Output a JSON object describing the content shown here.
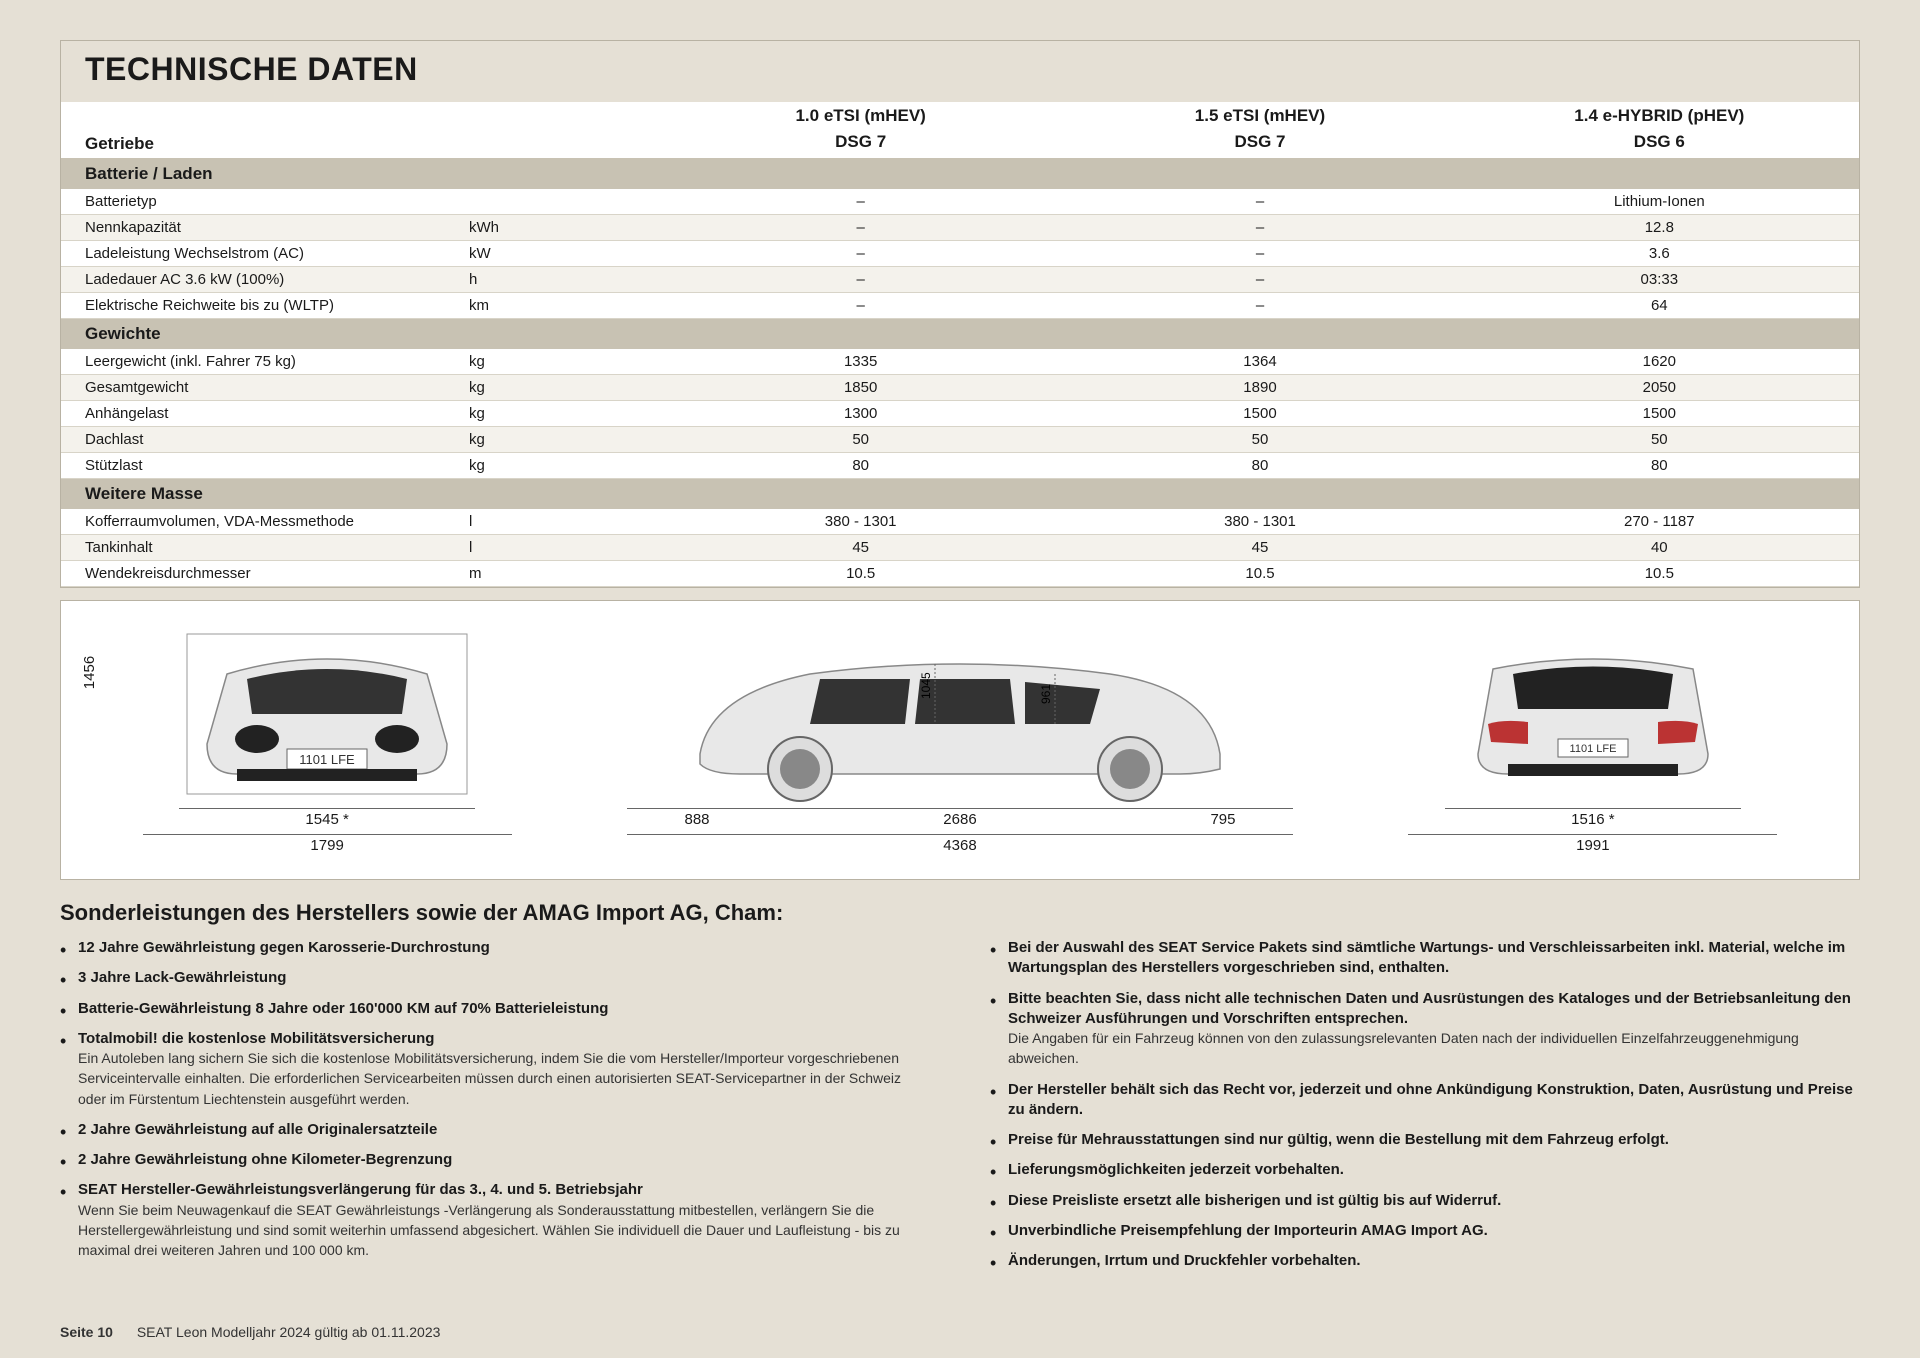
{
  "title": "TECHNISCHE DATEN",
  "header": {
    "row_label": "Getriebe",
    "variants": [
      {
        "engine": "1.0 eTSI (mHEV)",
        "trans": "DSG 7"
      },
      {
        "engine": "1.5 eTSI (mHEV)",
        "trans": "DSG 7"
      },
      {
        "engine": "1.4 e-HYBRID (pHEV)",
        "trans": "DSG 6"
      }
    ]
  },
  "sections": [
    {
      "name": "Batterie / Laden",
      "rows": [
        {
          "label": "Batterietyp",
          "unit": "",
          "v": [
            "–",
            "–",
            "Lithium-Ionen"
          ]
        },
        {
          "label": "Nennkapazität",
          "unit": "kWh",
          "v": [
            "–",
            "–",
            "12.8"
          ]
        },
        {
          "label": "Ladeleistung Wechselstrom (AC)",
          "unit": "kW",
          "v": [
            "–",
            "–",
            "3.6"
          ]
        },
        {
          "label": "Ladedauer AC 3.6 kW (100%)",
          "unit": "h",
          "v": [
            "–",
            "–",
            "03:33"
          ]
        },
        {
          "label": "Elektrische Reichweite bis zu (WLTP)",
          "unit": "km",
          "v": [
            "–",
            "–",
            "64"
          ]
        }
      ]
    },
    {
      "name": "Gewichte",
      "rows": [
        {
          "label": "Leergewicht (inkl. Fahrer 75 kg)",
          "unit": "kg",
          "v": [
            "1335",
            "1364",
            "1620"
          ]
        },
        {
          "label": "Gesamtgewicht",
          "unit": "kg",
          "v": [
            "1850",
            "1890",
            "2050"
          ]
        },
        {
          "label": "Anhängelast",
          "unit": "kg",
          "v": [
            "1300",
            "1500",
            "1500"
          ]
        },
        {
          "label": "Dachlast",
          "unit": "kg",
          "v": [
            "50",
            "50",
            "50"
          ]
        },
        {
          "label": "Stützlast",
          "unit": "kg",
          "v": [
            "80",
            "80",
            "80"
          ]
        }
      ]
    },
    {
      "name": "Weitere Masse",
      "rows": [
        {
          "label": "Kofferraumvolumen, VDA-Messmethode",
          "unit": "l",
          "v": [
            "380 - 1301",
            "380 - 1301",
            "270 - 1187"
          ]
        },
        {
          "label": "Tankinhalt",
          "unit": "l",
          "v": [
            "45",
            "45",
            "40"
          ]
        },
        {
          "label": "Wendekreisdurchmesser",
          "unit": "m",
          "v": [
            "10.5",
            "10.5",
            "10.5"
          ]
        }
      ]
    }
  ],
  "dimensions": {
    "front": {
      "height": "1456",
      "track": "1545 *",
      "width": "1799",
      "plate": "1101 LFE"
    },
    "side": {
      "headroom": "1045",
      "rear_head": "961",
      "front_over": "888",
      "wheelbase": "2686",
      "rear_over": "795",
      "length": "4368"
    },
    "rear": {
      "track": "1516 *",
      "width": "1991",
      "plate": "1101 LFE"
    }
  },
  "bottom": {
    "heading": "Sonderleistungen des Herstellers sowie der AMAG Import AG, Cham:",
    "left": [
      {
        "bold": "12 Jahre Gewährleistung gegen Karosserie-Durchrostung"
      },
      {
        "bold": "3 Jahre Lack-Gewährleistung"
      },
      {
        "bold": "Batterie-Gewährleistung 8 Jahre oder 160'000 KM auf 70% Batterieleistung"
      },
      {
        "bold": "Totalmobil! die kostenlose Mobilitätsversicherung",
        "sub": "Ein Autoleben lang sichern Sie sich die kostenlose Mobilitätsversicherung, indem Sie die vom Hersteller/Importeur vorgeschriebenen Serviceintervalle einhalten. Die erforderlichen Servicearbeiten müssen durch einen autorisierten SEAT-Servicepartner in der Schweiz oder im Fürstentum Liechtenstein ausgeführt werden."
      },
      {
        "bold": "2 Jahre Gewährleistung auf alle Originalersatzteile"
      },
      {
        "bold": "2 Jahre Gewährleistung ohne Kilometer-Begrenzung"
      },
      {
        "bold": "SEAT Hersteller-Gewährleistungsverlängerung für das 3., 4. und 5. Betriebsjahr",
        "sub": "Wenn Sie beim Neuwagenkauf die SEAT Gewährleistungs -Verlängerung als Sonderausstattung mitbestellen, verlängern Sie die Herstellergewährleistung und sind somit weiterhin umfassend abgesichert. Wählen Sie individuell die Dauer und Laufleistung - bis zu maximal drei weiteren Jahren und 100 000 km."
      }
    ],
    "right": [
      {
        "bold": "Bei der Auswahl des SEAT Service Pakets sind sämtliche Wartungs- und Verschleissarbeiten inkl. Material, welche im Wartungsplan des Herstellers vorgeschrieben sind, enthalten."
      },
      {
        "bold": "Bitte beachten Sie, dass nicht alle technischen Daten und Ausrüstungen des Kataloges und der Betriebsanleitung den Schweizer Ausführungen und Vorschriften entsprechen.",
        "sub": "Die Angaben für ein Fahrzeug können von den zulassungsrelevanten Daten nach der individuellen Einzelfahrzeuggenehmigung abweichen."
      },
      {
        "bold": "Der Hersteller behält sich das Recht vor, jederzeit und ohne Ankündigung Konstruktion, Daten, Ausrüstung und Preise zu ändern."
      },
      {
        "bold": "Preise für Mehrausstattungen sind nur gültig, wenn die Bestellung mit dem Fahrzeug erfolgt."
      },
      {
        "bold": "Lieferungsmöglichkeiten jederzeit vorbehalten."
      },
      {
        "bold": "Diese Preisliste ersetzt alle bisherigen und ist gültig bis auf Widerruf."
      },
      {
        "bold": "Unverbindliche Preisempfehlung der Importeurin AMAG Import AG."
      },
      {
        "bold": "Änderungen, Irrtum und Druckfehler vorbehalten."
      }
    ]
  },
  "footer": {
    "page": "Seite 10",
    "text": "SEAT Leon Modelljahr 2024 gültig ab 01.11.2023"
  },
  "colors": {
    "page_bg": "#e5e0d5",
    "section_bg": "#c8c2b3",
    "row_alt": "#f4f2ec",
    "border": "#b8b2a3",
    "text": "#1a1a1a"
  }
}
